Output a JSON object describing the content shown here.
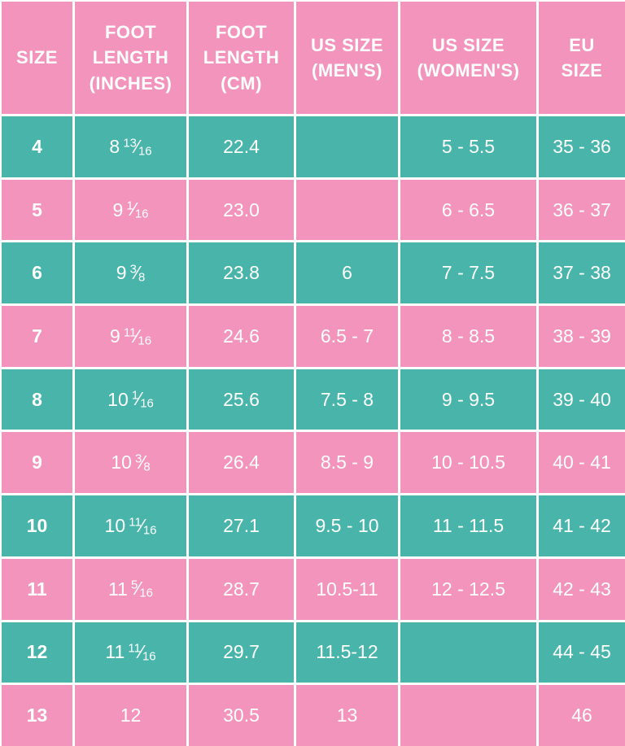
{
  "colors": {
    "pink": "#F294BB",
    "teal": "#48B4AA",
    "text": "#FFFFFF",
    "gridline": "#FFFFFF"
  },
  "fraction_slash": "⁄",
  "chart_data": {
    "type": "table",
    "columns": [
      "SIZE",
      "FOOT LENGTH (INCHES)",
      "FOOT LENGTH (CM)",
      "US SIZE (MEN'S)",
      "US SIZE (WOMEN'S)",
      "EU SIZE"
    ],
    "rows": [
      [
        "4",
        "8 13/16",
        "22.4",
        "",
        "5 - 5.5",
        "35 - 36"
      ],
      [
        "5",
        "9 1/16",
        "23.0",
        "",
        "6 - 6.5",
        "36 - 37"
      ],
      [
        "6",
        "9 3/8",
        "23.8",
        "6",
        "7 - 7.5",
        "37 - 38"
      ],
      [
        "7",
        "9 11/16",
        "24.6",
        "6.5 - 7",
        "8 - 8.5",
        "38 - 39"
      ],
      [
        "8",
        "10 1/16",
        "25.6",
        "7.5 - 8",
        "9 - 9.5",
        "39 - 40"
      ],
      [
        "9",
        "10 3/8",
        "26.4",
        "8.5 - 9",
        "10 - 10.5",
        "40 - 41"
      ],
      [
        "10",
        "10 11/16",
        "27.1",
        "9.5 - 10",
        "11 - 11.5",
        "41 - 42"
      ],
      [
        "11",
        "11 5/16",
        "28.7",
        "10.5-11",
        "12 - 12.5",
        "42 - 43"
      ],
      [
        "12",
        "11 11/16",
        "29.7",
        "11.5-12",
        "",
        "44 - 45"
      ],
      [
        "13",
        "12",
        "30.5",
        "13",
        "",
        "46"
      ]
    ]
  },
  "table": {
    "headers": [
      {
        "lines": [
          "SIZE"
        ]
      },
      {
        "lines": [
          "FOOT",
          "LENGTH",
          "(INCHES)"
        ]
      },
      {
        "lines": [
          "FOOT",
          "LENGTH",
          "(CM)"
        ]
      },
      {
        "lines": [
          "US SIZE",
          "(MEN'S)"
        ]
      },
      {
        "lines": [
          "US SIZE",
          "(WOMEN'S)"
        ]
      },
      {
        "lines": [
          "EU",
          "SIZE"
        ]
      }
    ],
    "rows": [
      {
        "size": "4",
        "in_whole": "8",
        "in_num": "13",
        "in_den": "16",
        "cm": "22.4",
        "us_men": "",
        "us_women": "5 - 5.5",
        "eu": "35 - 36"
      },
      {
        "size": "5",
        "in_whole": "9",
        "in_num": "1",
        "in_den": "16",
        "cm": "23.0",
        "us_men": "",
        "us_women": "6 - 6.5",
        "eu": "36 - 37"
      },
      {
        "size": "6",
        "in_whole": "9",
        "in_num": "3",
        "in_den": "8",
        "cm": "23.8",
        "us_men": "6",
        "us_women": "7 - 7.5",
        "eu": "37 - 38"
      },
      {
        "size": "7",
        "in_whole": "9",
        "in_num": "11",
        "in_den": "16",
        "cm": "24.6",
        "us_men": "6.5 - 7",
        "us_women": "8 - 8.5",
        "eu": "38 - 39"
      },
      {
        "size": "8",
        "in_whole": "10",
        "in_num": "1",
        "in_den": "16",
        "cm": "25.6",
        "us_men": "7.5 - 8",
        "us_women": "9 - 9.5",
        "eu": "39 - 40"
      },
      {
        "size": "9",
        "in_whole": "10",
        "in_num": "3",
        "in_den": "8",
        "cm": "26.4",
        "us_men": "8.5 - 9",
        "us_women": "10 - 10.5",
        "eu": "40 - 41"
      },
      {
        "size": "10",
        "in_whole": "10",
        "in_num": "11",
        "in_den": "16",
        "cm": "27.1",
        "us_men": "9.5 - 10",
        "us_women": "11 - 11.5",
        "eu": "41 - 42"
      },
      {
        "size": "11",
        "in_whole": "11",
        "in_num": "5",
        "in_den": "16",
        "cm": "28.7",
        "us_men": "10.5-11",
        "us_women": "12 - 12.5",
        "eu": "42 - 43"
      },
      {
        "size": "12",
        "in_whole": "11",
        "in_num": "11",
        "in_den": "16",
        "cm": "29.7",
        "us_men": "11.5-12",
        "us_women": "",
        "eu": "44 - 45"
      },
      {
        "size": "13",
        "in_whole": "12",
        "in_num": "",
        "in_den": "",
        "cm": "30.5",
        "us_men": "13",
        "us_women": "",
        "eu": "46"
      }
    ]
  }
}
